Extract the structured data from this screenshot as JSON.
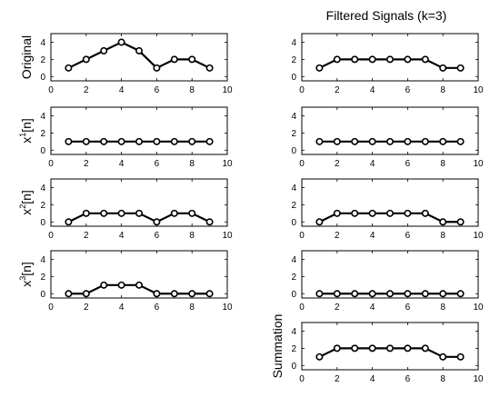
{
  "figure": {
    "right_title": "Filtered Signals (k=3)"
  },
  "chart_data": [
    {
      "type": "line",
      "panel": "left-1",
      "ylabel": "Original",
      "x": [
        1,
        2,
        3,
        4,
        5,
        6,
        7,
        8,
        9
      ],
      "y": [
        1,
        2,
        3,
        4,
        3,
        1,
        2,
        2,
        1
      ],
      "xlim": [
        0,
        10
      ],
      "ylim": [
        -0.5,
        5
      ],
      "xticks": [
        0,
        2,
        4,
        6,
        8,
        10
      ],
      "yticks": [
        0,
        2,
        4
      ],
      "marker": "circle",
      "grid": false
    },
    {
      "type": "line",
      "panel": "right-1",
      "ylabel": "",
      "x": [
        1,
        2,
        3,
        4,
        5,
        6,
        7,
        8,
        9
      ],
      "y": [
        1,
        2,
        2,
        2,
        2,
        2,
        2,
        1,
        1
      ],
      "xlim": [
        0,
        10
      ],
      "ylim": [
        -0.5,
        5
      ],
      "xticks": [
        0,
        2,
        4,
        6,
        8,
        10
      ],
      "yticks": [
        0,
        2,
        4
      ],
      "marker": "circle",
      "grid": false
    },
    {
      "type": "line",
      "panel": "left-2",
      "ylabel": "x",
      "ylabel_sup": "1",
      "ylabel_suffix": "[n]",
      "x": [
        1,
        2,
        3,
        4,
        5,
        6,
        7,
        8,
        9
      ],
      "y": [
        1,
        1,
        1,
        1,
        1,
        1,
        1,
        1,
        1
      ],
      "xlim": [
        0,
        10
      ],
      "ylim": [
        -0.5,
        5
      ],
      "xticks": [
        0,
        2,
        4,
        6,
        8,
        10
      ],
      "yticks": [
        0,
        2,
        4
      ],
      "marker": "circle",
      "grid": false
    },
    {
      "type": "line",
      "panel": "right-2",
      "ylabel": "",
      "x": [
        1,
        2,
        3,
        4,
        5,
        6,
        7,
        8,
        9
      ],
      "y": [
        1,
        1,
        1,
        1,
        1,
        1,
        1,
        1,
        1
      ],
      "xlim": [
        0,
        10
      ],
      "ylim": [
        -0.5,
        5
      ],
      "xticks": [
        0,
        2,
        4,
        6,
        8,
        10
      ],
      "yticks": [
        0,
        2,
        4
      ],
      "marker": "circle",
      "grid": false
    },
    {
      "type": "line",
      "panel": "left-3",
      "ylabel": "x",
      "ylabel_sup": "2",
      "ylabel_suffix": "[n]",
      "x": [
        1,
        2,
        3,
        4,
        5,
        6,
        7,
        8,
        9
      ],
      "y": [
        0,
        1,
        1,
        1,
        1,
        0,
        1,
        1,
        0
      ],
      "xlim": [
        0,
        10
      ],
      "ylim": [
        -0.5,
        5
      ],
      "xticks": [
        0,
        2,
        4,
        6,
        8,
        10
      ],
      "yticks": [
        0,
        2,
        4
      ],
      "marker": "circle",
      "grid": false
    },
    {
      "type": "line",
      "panel": "right-3",
      "ylabel": "",
      "x": [
        1,
        2,
        3,
        4,
        5,
        6,
        7,
        8,
        9
      ],
      "y": [
        0,
        1,
        1,
        1,
        1,
        1,
        1,
        0,
        0
      ],
      "xlim": [
        0,
        10
      ],
      "ylim": [
        -0.5,
        5
      ],
      "xticks": [
        0,
        2,
        4,
        6,
        8,
        10
      ],
      "yticks": [
        0,
        2,
        4
      ],
      "marker": "circle",
      "grid": false
    },
    {
      "type": "line",
      "panel": "left-4",
      "ylabel": "x",
      "ylabel_sup": "3",
      "ylabel_suffix": "[n]",
      "x": [
        1,
        2,
        3,
        4,
        5,
        6,
        7,
        8,
        9
      ],
      "y": [
        0,
        0,
        1,
        1,
        1,
        0,
        0,
        0,
        0
      ],
      "xlim": [
        0,
        10
      ],
      "ylim": [
        -0.5,
        5
      ],
      "xticks": [
        0,
        2,
        4,
        6,
        8,
        10
      ],
      "yticks": [
        0,
        2,
        4
      ],
      "marker": "circle",
      "grid": false
    },
    {
      "type": "line",
      "panel": "right-4",
      "ylabel": "",
      "x": [
        1,
        2,
        3,
        4,
        5,
        6,
        7,
        8,
        9
      ],
      "y": [
        0,
        0,
        0,
        0,
        0,
        0,
        0,
        0,
        0
      ],
      "xlim": [
        0,
        10
      ],
      "ylim": [
        -0.5,
        5
      ],
      "xticks": [
        0,
        2,
        4,
        6,
        8,
        10
      ],
      "yticks": [
        0,
        2,
        4
      ],
      "marker": "circle",
      "grid": false
    },
    {
      "type": "line",
      "panel": "right-5",
      "ylabel": "Summation",
      "x": [
        1,
        2,
        3,
        4,
        5,
        6,
        7,
        8,
        9
      ],
      "y": [
        1,
        2,
        2,
        2,
        2,
        2,
        2,
        1,
        1
      ],
      "xlim": [
        0,
        10
      ],
      "ylim": [
        -0.5,
        5
      ],
      "xticks": [
        0,
        2,
        4,
        6,
        8,
        10
      ],
      "yticks": [
        0,
        2,
        4
      ],
      "marker": "circle",
      "grid": false
    }
  ]
}
